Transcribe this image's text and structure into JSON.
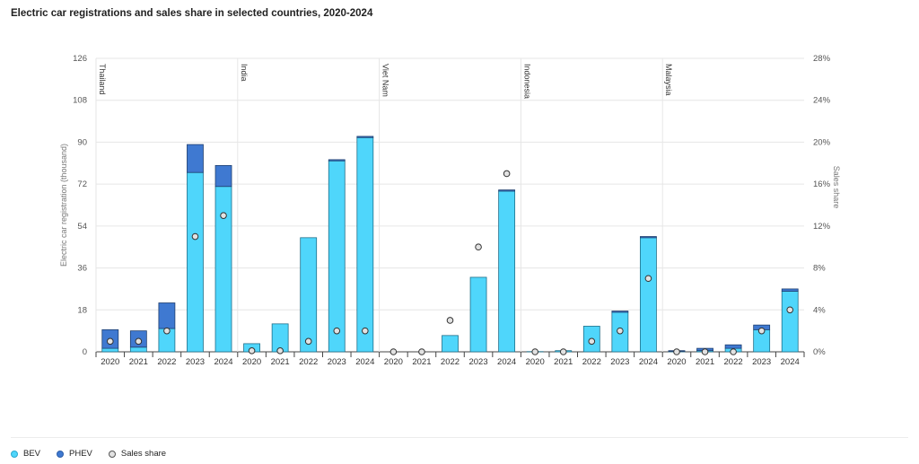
{
  "title": "Electric car registrations and sales share in selected countries, 2020-2024",
  "colors": {
    "bev": "#4fd6fb",
    "phev": "#3f79d1",
    "share_fill": "#e2e2e2",
    "share_stroke": "#333333"
  },
  "legend": [
    {
      "label": "BEV",
      "color": "#4fd6fb"
    },
    {
      "label": "PHEV",
      "color": "#3f79d1"
    },
    {
      "label": "Sales share",
      "color": "#e2e2e2"
    }
  ],
  "chart_data": {
    "type": "bar",
    "stacked": true,
    "ylabel": "Electric car registration (thousand)",
    "y2label": "Sales share",
    "ylim": [
      0,
      126
    ],
    "yticks": [
      "0",
      "18",
      "36",
      "54",
      "72",
      "90",
      "108",
      "126"
    ],
    "y2lim": [
      0,
      28
    ],
    "y2ticks": [
      "0%",
      "4%",
      "8%",
      "12%",
      "16%",
      "20%",
      "24%",
      "28%"
    ],
    "grid": true,
    "legend_position": "bottom-left",
    "groups": [
      {
        "name": "Thailand",
        "years": [
          "2020",
          "2021",
          "2022",
          "2023",
          "2024"
        ],
        "bev": [
          1.5,
          2,
          10,
          77,
          71
        ],
        "phev": [
          8,
          7,
          11,
          12,
          9
        ],
        "share": [
          1,
          1,
          2,
          11,
          13
        ]
      },
      {
        "name": "India",
        "years": [
          "2020",
          "2021",
          "2022",
          "2023",
          "2024"
        ],
        "bev": [
          3.5,
          12,
          49,
          82,
          92
        ],
        "phev": [
          0,
          0,
          0,
          0.5,
          0.5
        ],
        "share": [
          0.1,
          0.1,
          1,
          2,
          2
        ]
      },
      {
        "name": "Viet Nam",
        "years": [
          "2020",
          "2021",
          "2022",
          "2023",
          "2024"
        ],
        "bev": [
          0,
          0,
          7,
          32,
          69
        ],
        "phev": [
          0,
          0,
          0,
          0,
          0.5
        ],
        "share": [
          0,
          0,
          3,
          10,
          17
        ]
      },
      {
        "name": "Indonesia",
        "years": [
          "2020",
          "2021",
          "2022",
          "2023",
          "2024"
        ],
        "bev": [
          0.1,
          0.5,
          11,
          17,
          49
        ],
        "phev": [
          0,
          0,
          0,
          0.5,
          0.5
        ],
        "share": [
          0,
          0,
          1,
          2,
          7
        ]
      },
      {
        "name": "Malaysia",
        "years": [
          "2020",
          "2021",
          "2022",
          "2023",
          "2024"
        ],
        "bev": [
          0.3,
          0.5,
          1.5,
          9.5,
          26
        ],
        "phev": [
          0.2,
          1,
          1.5,
          2,
          1
        ],
        "share": [
          0,
          0,
          0,
          2,
          4
        ]
      }
    ]
  }
}
